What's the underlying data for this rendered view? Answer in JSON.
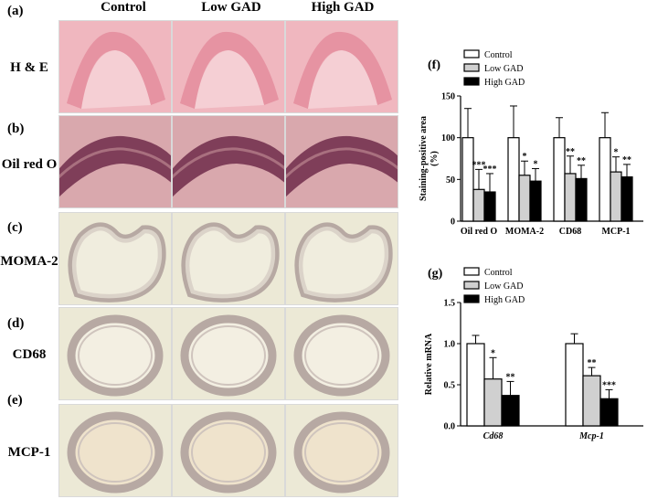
{
  "figure": {
    "panel_letters": [
      "(a)",
      "(b)",
      "(c)",
      "(d)",
      "(e)"
    ],
    "column_headers": [
      "Control",
      "Low GAD",
      "High GAD"
    ],
    "row_labels": [
      "H & E",
      "Oil red O",
      "MOMA-2",
      "CD68",
      "MCP-1"
    ],
    "stain_colors": {
      "he": "#f0b7bf",
      "oil": "#d9a8ad",
      "ihc": "#ece9d6",
      "ihc_tissue": "#b7a9a3"
    }
  },
  "chart_data": [
    {
      "panel": "(f)",
      "type": "bar",
      "categories": [
        "Oil red O",
        "MOMA-2",
        "CD68",
        "MCP-1"
      ],
      "series": [
        {
          "name": "Control",
          "values": [
            100,
            100,
            100,
            100
          ],
          "errors": [
            35,
            38,
            24,
            30
          ],
          "sig": [
            "",
            "",
            "",
            ""
          ],
          "color": "#ffffff"
        },
        {
          "name": "Low GAD",
          "values": [
            38,
            55,
            57,
            59
          ],
          "errors": [
            24,
            17,
            21,
            18
          ],
          "sig": [
            "***",
            "*",
            "**",
            "*"
          ],
          "color": "#d0d0d0"
        },
        {
          "name": "High GAD",
          "values": [
            35,
            48,
            51,
            53
          ],
          "errors": [
            22,
            15,
            16,
            15
          ],
          "sig": [
            "***",
            "*",
            "**",
            "**"
          ],
          "color": "#000000"
        }
      ],
      "ylabel": "Staining-positive area\n(%)",
      "ylim": [
        0,
        150
      ],
      "yticks": [
        "0",
        "50",
        "100",
        "150"
      ],
      "grid": false,
      "legend": "top-left"
    },
    {
      "panel": "(g)",
      "type": "bar",
      "categories": [
        "Cd68",
        "Mcp-1"
      ],
      "series": [
        {
          "name": "Control",
          "values": [
            1.0,
            1.0
          ],
          "errors": [
            0.1,
            0.12
          ],
          "sig": [
            "",
            ""
          ],
          "color": "#ffffff"
        },
        {
          "name": "Low GAD",
          "values": [
            0.57,
            0.61
          ],
          "errors": [
            0.26,
            0.1
          ],
          "sig": [
            "*",
            "**"
          ],
          "color": "#d0d0d0"
        },
        {
          "name": "High GAD",
          "values": [
            0.37,
            0.33
          ],
          "errors": [
            0.17,
            0.11
          ],
          "sig": [
            "**",
            "***"
          ],
          "color": "#000000"
        }
      ],
      "ylabel": "Relative  mRNA",
      "ylim": [
        0,
        1.5
      ],
      "yticks": [
        "0.0",
        "0.5",
        "1.0",
        "1.5"
      ],
      "grid": false,
      "legend": "top-left"
    }
  ]
}
